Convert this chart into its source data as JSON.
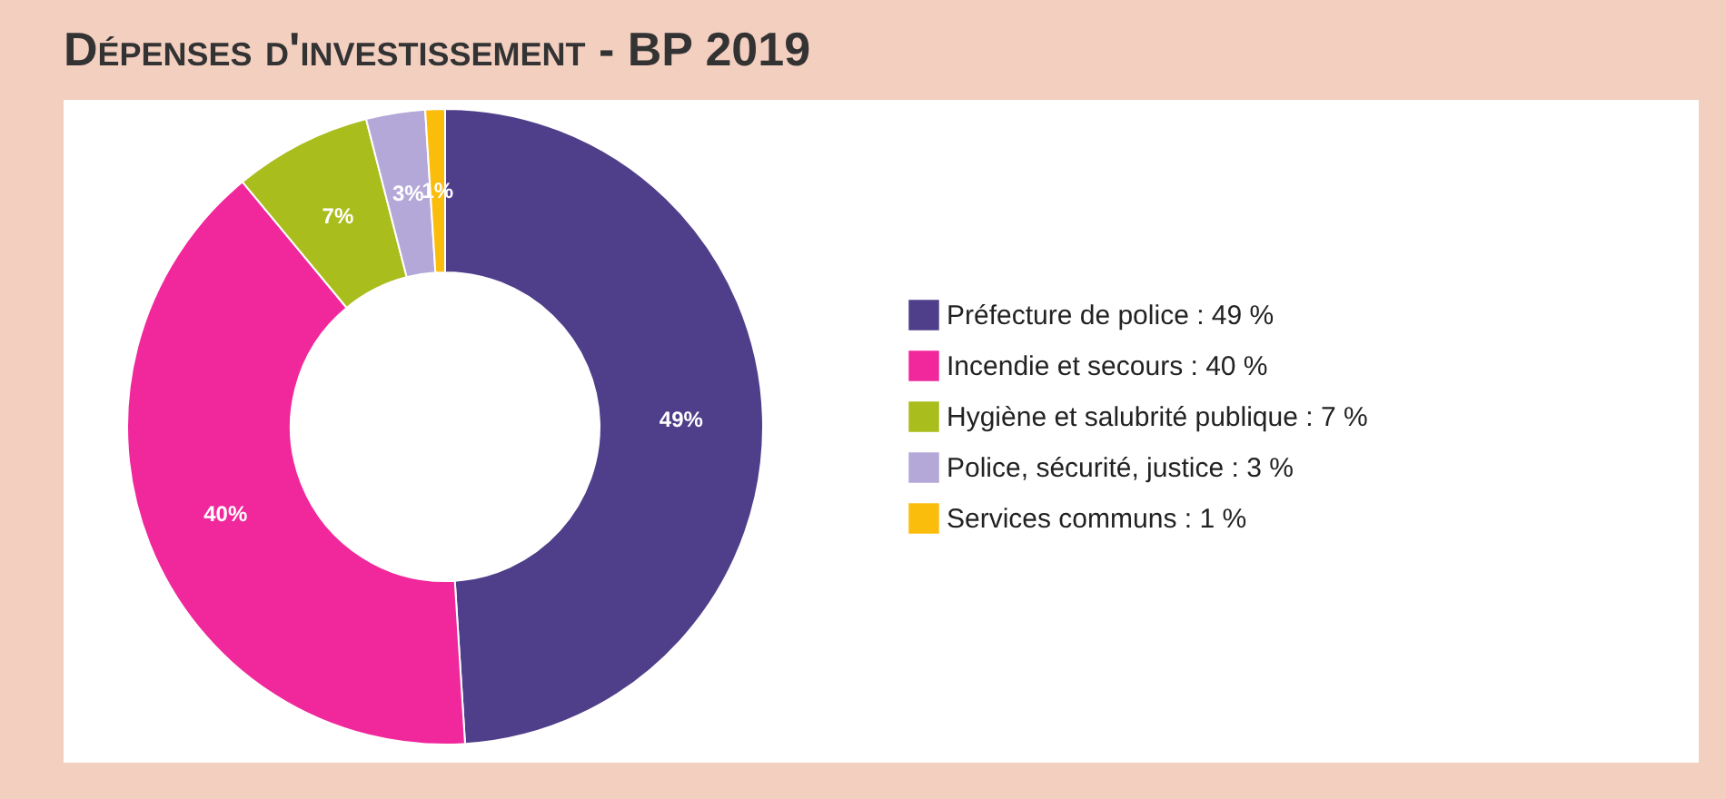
{
  "chart_data": {
    "type": "donut",
    "title": "Dépenses d'investissement - BP 2019",
    "categories": [
      "Préfecture de police : 49 %",
      "Incendie et secours : 40 %",
      "Hygiène et salubrité publique : 7 %",
      "Police, sécurité, justice : 3 %",
      "Services communs : 1 %"
    ],
    "values": [
      49,
      40,
      7,
      3,
      1
    ],
    "colors": [
      "#4f3f8a",
      "#f0289c",
      "#a9bd1c",
      "#b3a8d8",
      "#fbbd0c"
    ],
    "value_labels": [
      "49%",
      "40%",
      "7%",
      "3%",
      "1%"
    ],
    "legend": "right"
  }
}
